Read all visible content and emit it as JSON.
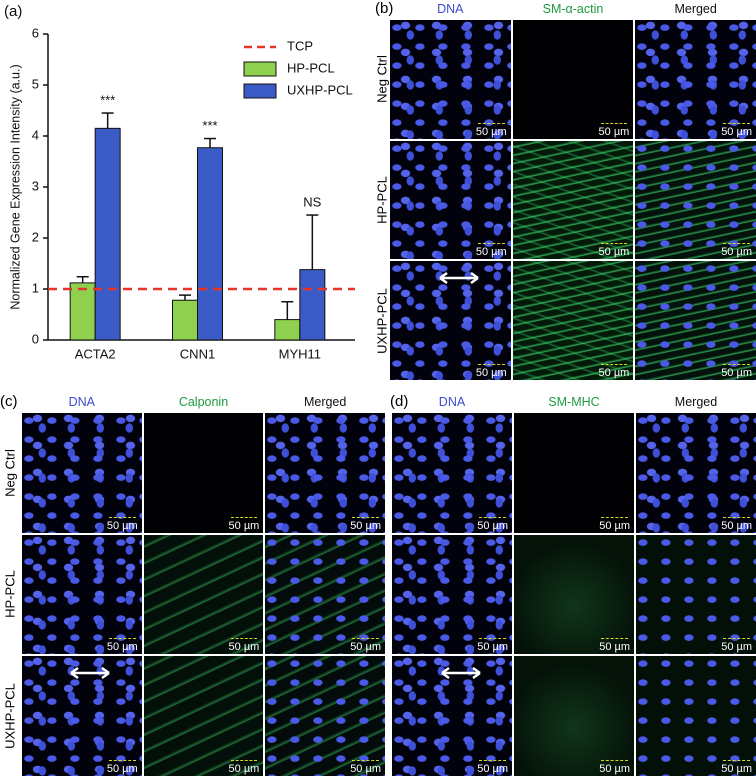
{
  "chart_data": {
    "type": "bar",
    "panel_label": "(a)",
    "y_label": "Normalized Gene Expression Intensity (a.u.)",
    "categories": [
      "ACTA2",
      "CNN1",
      "MYH11"
    ],
    "ylim": [
      0,
      6
    ],
    "yticks": [
      0,
      1,
      2,
      3,
      4,
      5,
      6
    ],
    "reference_line": {
      "name": "TCP",
      "value": 1,
      "color": "#e8332a"
    },
    "series": [
      {
        "name": "HP-PCL",
        "color": "#8fd14f",
        "values": [
          1.12,
          0.78,
          0.4
        ],
        "errors": [
          0.12,
          0.1,
          0.35
        ]
      },
      {
        "name": "UXHP-PCL",
        "color": "#3b5cc6",
        "values": [
          4.15,
          3.77,
          1.38
        ],
        "errors": [
          0.3,
          0.18,
          1.07
        ],
        "annotations": [
          "***",
          "***",
          "NS"
        ]
      }
    ]
  },
  "panels": [
    {
      "label": "(b)",
      "columns": [
        "DNA",
        "SM-α-actin",
        "Merged"
      ],
      "rows": [
        "Neg Ctrl",
        "HP-PCL",
        "UXHP-PCL"
      ],
      "scale_bar": "50 µm"
    },
    {
      "label": "(c)",
      "columns": [
        "DNA",
        "Calponin",
        "Merged"
      ],
      "rows": [
        "Neg Ctrl",
        "HP-PCL",
        "UXHP-PCL"
      ],
      "scale_bar": "50 µm"
    },
    {
      "label": "(d)",
      "columns": [
        "DNA",
        "SM-MHC",
        "Merged"
      ],
      "scale_bar": "50 µm"
    }
  ]
}
